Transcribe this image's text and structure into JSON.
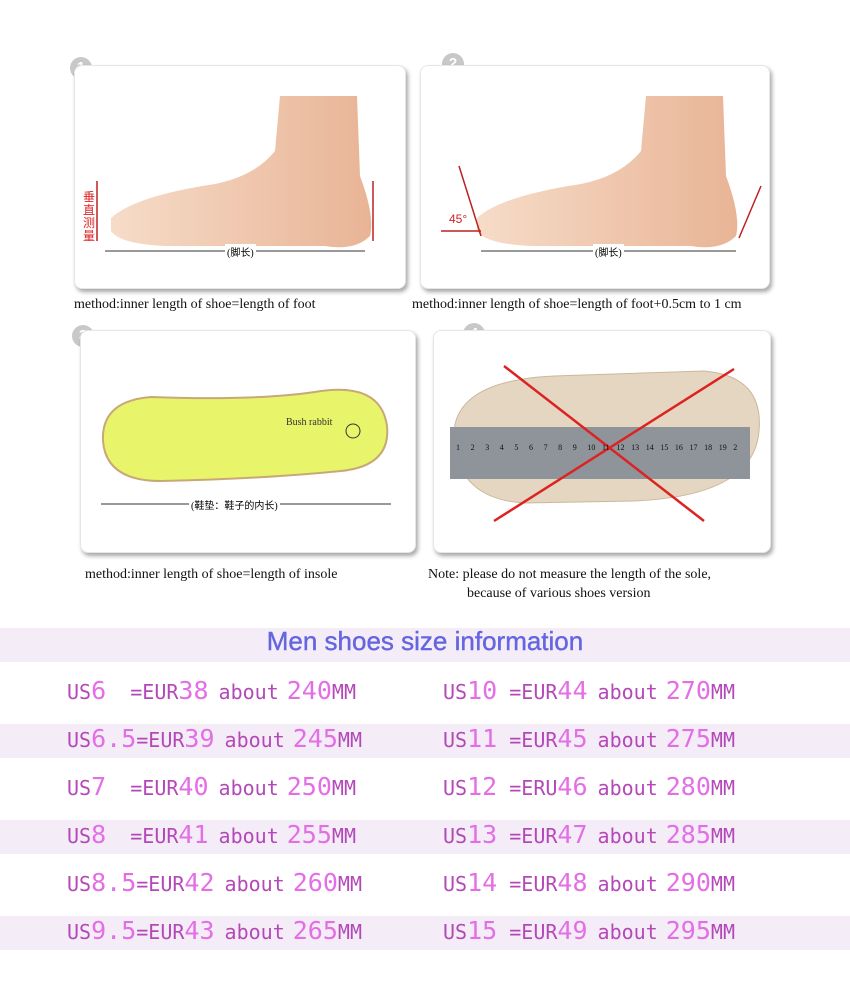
{
  "steps": [
    {
      "number": "1",
      "caption": "method:inner length of shoe=length of foot",
      "label_vertical": "垂直测量",
      "label_length": "(脚长)"
    },
    {
      "number": "2",
      "caption": "method:inner length of shoe=length of foot+0.5cm to 1 cm",
      "angle": "45°",
      "label_length": "(脚长)"
    },
    {
      "number": "3",
      "caption": "method:inner length of shoe=length of insole",
      "brand": "Bush rabbit",
      "label_length": "(鞋垫：鞋子的内长)"
    },
    {
      "number": "4",
      "caption_line1": "Note: please do not measure the length of the sole,",
      "caption_line2": "because of various shoes version",
      "ruler": [
        "1",
        "2",
        "3",
        "4",
        "5",
        "6",
        "7",
        "8",
        "9",
        "10",
        "11",
        "12",
        "13",
        "14",
        "15",
        "16",
        "17",
        "18",
        "19",
        "2"
      ]
    }
  ],
  "size_table": {
    "title": "Men shoes size information",
    "colors": {
      "title": "#6565e0",
      "text": "#b448b8",
      "number": "#e46ee6",
      "band": "#f4edf8"
    },
    "rows": [
      [
        {
          "us": "6",
          "sep": "  ",
          "eur_label": "=EUR",
          "eur": "38",
          "about": "about",
          "mm": "240",
          "unit": "MM"
        },
        {
          "us": "10",
          "sep": " ",
          "eur_label": "=EUR",
          "eur": "44",
          "about": "about",
          "mm": "270",
          "unit": "MM"
        }
      ],
      [
        {
          "us": "6.5",
          "sep": "",
          "eur_label": "=EUR",
          "eur": "39",
          "about": "about",
          "mm": "245",
          "unit": "MM"
        },
        {
          "us": "11",
          "sep": " ",
          "eur_label": "=EUR",
          "eur": "45",
          "about": "about",
          "mm": "275",
          "unit": "MM"
        }
      ],
      [
        {
          "us": "7",
          "sep": "  ",
          "eur_label": "=EUR",
          "eur": "40",
          "about": "about",
          "mm": "250",
          "unit": "MM"
        },
        {
          "us": "12",
          "sep": " ",
          "eur_label": "=ERU",
          "eur": "46",
          "about": "about",
          "mm": "280",
          "unit": "MM"
        }
      ],
      [
        {
          "us": "8",
          "sep": "  ",
          "eur_label": "=EUR",
          "eur": "41",
          "about": "about",
          "mm": "255",
          "unit": "MM"
        },
        {
          "us": "13",
          "sep": " ",
          "eur_label": "=EUR",
          "eur": "47",
          "about": "about",
          "mm": "285",
          "unit": "MM"
        }
      ],
      [
        {
          "us": "8.5",
          "sep": "",
          "eur_label": "=EUR",
          "eur": "42",
          "about": "about",
          "mm": "260",
          "unit": "MM"
        },
        {
          "us": "14",
          "sep": " ",
          "eur_label": "=EUR",
          "eur": "48",
          "about": "about",
          "mm": "290",
          "unit": "MM"
        }
      ],
      [
        {
          "us": "9.5",
          "sep": "",
          "eur_label": "=EUR",
          "eur": "43",
          "about": "about",
          "mm": "265",
          "unit": "MM"
        },
        {
          "us": "15",
          "sep": " ",
          "eur_label": "=EUR",
          "eur": "49",
          "about": "about",
          "mm": "295",
          "unit": "MM"
        }
      ]
    ]
  }
}
